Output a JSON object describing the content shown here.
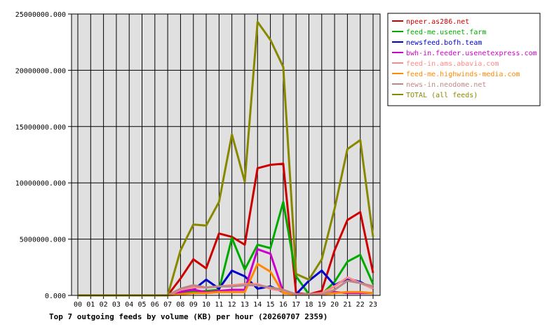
{
  "chart_data": {
    "type": "line",
    "title": "",
    "caption": "Top 7 outgoing feeds by volume (KB) per hour (20260707 2359)",
    "xlabel": "",
    "ylabel": "",
    "categories": [
      "00",
      "01",
      "02",
      "03",
      "04",
      "05",
      "06",
      "07",
      "08",
      "09",
      "10",
      "11",
      "12",
      "13",
      "14",
      "15",
      "16",
      "17",
      "18",
      "19",
      "20",
      "21",
      "22",
      "23"
    ],
    "ylim": [
      0,
      25000000
    ],
    "yticks": [
      0,
      5000000,
      10000000,
      15000000,
      20000000,
      25000000
    ],
    "ytick_labels": [
      "0.000",
      "5000000.000",
      "10000000.000",
      "15000000.000",
      "20000000.000",
      "25000000.000"
    ],
    "grid": true,
    "legend_position": "top-right",
    "series": [
      {
        "name": "npeer.as286.net",
        "color": "#cc0000",
        "values": [
          0,
          0,
          0,
          0,
          0,
          0,
          0,
          0,
          1500000,
          3200000,
          2400000,
          5500000,
          5200000,
          4500000,
          11300000,
          11600000,
          11700000,
          200000,
          100000,
          400000,
          4000000,
          6700000,
          7400000,
          2000000
        ]
      },
      {
        "name": "feed-me.usenet.farm",
        "color": "#00aa00",
        "values": [
          0,
          0,
          0,
          0,
          0,
          0,
          0,
          0,
          200000,
          300000,
          400000,
          500000,
          5100000,
          2300000,
          4500000,
          4200000,
          8300000,
          1700000,
          100000,
          100000,
          1200000,
          3000000,
          3600000,
          1000000
        ]
      },
      {
        "name": "newsfeed.bofh.team",
        "color": "#0000cc",
        "values": [
          0,
          0,
          0,
          0,
          0,
          0,
          0,
          0,
          400000,
          500000,
          1400000,
          600000,
          2200000,
          1700000,
          600000,
          800000,
          300000,
          100000,
          1300000,
          2200000,
          900000,
          1500000,
          1200000,
          600000
        ]
      },
      {
        "name": "bwh-in.feeder.usenetexpress.com",
        "color": "#cc00cc",
        "values": [
          0,
          0,
          0,
          0,
          0,
          0,
          0,
          0,
          300000,
          500000,
          300000,
          400000,
          500000,
          500000,
          4100000,
          3700000,
          300000,
          100000,
          100000,
          200000,
          300000,
          200000,
          200000,
          200000
        ]
      },
      {
        "name": "feed-in.ams.abavia.com",
        "color": "#ff8888",
        "values": [
          0,
          0,
          0,
          0,
          0,
          0,
          0,
          0,
          500000,
          700000,
          700000,
          800000,
          900000,
          1000000,
          1000000,
          600000,
          400000,
          100000,
          100000,
          200000,
          800000,
          1600000,
          1100000,
          600000
        ]
      },
      {
        "name": "feed-me.highwinds-media.com",
        "color": "#ff8800",
        "values": [
          0,
          0,
          0,
          0,
          0,
          0,
          0,
          0,
          100000,
          200000,
          200000,
          300000,
          300000,
          300000,
          2800000,
          2100000,
          200000,
          100000,
          100000,
          100000,
          200000,
          300000,
          300000,
          200000
        ]
      },
      {
        "name": "news-in.neodome.net",
        "color": "#bb8888",
        "values": [
          0,
          0,
          0,
          0,
          0,
          0,
          0,
          0,
          600000,
          900000,
          700000,
          800000,
          800000,
          900000,
          900000,
          700000,
          500000,
          100000,
          100000,
          100000,
          500000,
          1300000,
          1100000,
          800000
        ]
      },
      {
        "name": "TOTAL (all feeds)",
        "color": "#888800",
        "values": [
          0,
          0,
          0,
          0,
          0,
          0,
          0,
          0,
          4000000,
          6300000,
          6200000,
          8300000,
          14300000,
          10100000,
          24300000,
          22700000,
          20300000,
          1900000,
          1400000,
          3200000,
          7700000,
          13000000,
          13800000,
          5200000
        ]
      }
    ]
  }
}
